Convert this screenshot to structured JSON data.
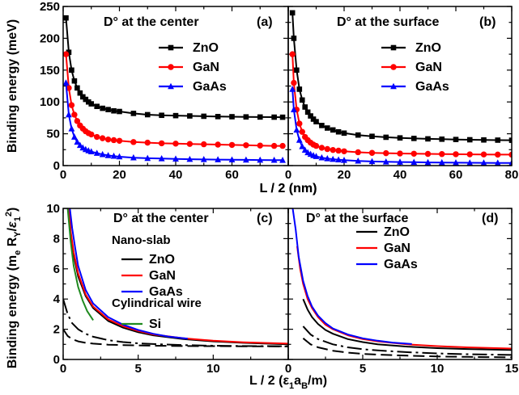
{
  "chart_data": [
    {
      "type": "line",
      "panel": "(a)",
      "title": "D° at the center",
      "ylabel": "Binding energy (meV)",
      "xlabel": "L / 2 (nm)",
      "xlim": [
        0,
        80
      ],
      "ylim": [
        0,
        250
      ],
      "xticks": [
        "0",
        "20",
        "40",
        "60"
      ],
      "yticks": [
        "0",
        "50",
        "100",
        "150",
        "200",
        "250"
      ],
      "legend_position": "top-right",
      "series": [
        {
          "name": "ZnO",
          "color": "#000000",
          "marker": "square",
          "x": [
            1,
            2,
            3,
            4,
            5,
            6,
            7,
            8,
            9,
            10,
            12,
            14,
            16,
            18,
            20,
            25,
            30,
            35,
            40,
            45,
            50,
            55,
            60,
            65,
            70,
            75,
            78
          ],
          "y": [
            232,
            178,
            150,
            133,
            122,
            114,
            108,
            104,
            100,
            97,
            93,
            90,
            88,
            86,
            85,
            82,
            80,
            79,
            78.5,
            78,
            77.5,
            77,
            76.8,
            76.5,
            76.3,
            76.1,
            76
          ]
        },
        {
          "name": "GaN",
          "color": "#ff0000",
          "marker": "circle",
          "x": [
            1,
            2,
            3,
            4,
            5,
            6,
            7,
            8,
            9,
            10,
            12,
            14,
            16,
            18,
            20,
            25,
            30,
            35,
            40,
            45,
            50,
            55,
            60,
            65,
            70,
            75,
            78
          ],
          "y": [
            175,
            122,
            95,
            80,
            70,
            63,
            58,
            54,
            51,
            49,
            45,
            43,
            41,
            40,
            39,
            37,
            36,
            35,
            34.5,
            34,
            33.5,
            33,
            32.5,
            32,
            31.5,
            31,
            31
          ]
        },
        {
          "name": "GaAs",
          "color": "#0000ff",
          "marker": "triangle",
          "x": [
            1,
            2,
            3,
            4,
            5,
            6,
            7,
            8,
            9,
            10,
            12,
            14,
            16,
            18,
            20,
            25,
            30,
            35,
            40,
            45,
            50,
            55,
            60,
            65,
            70,
            75,
            78
          ],
          "y": [
            130,
            80,
            58,
            45,
            37,
            32,
            28,
            25.5,
            23.5,
            22,
            19.5,
            17.5,
            16,
            15,
            14,
            12.5,
            11.5,
            11,
            10.5,
            10,
            9.7,
            9.4,
            9.2,
            9,
            8.8,
            8.6,
            8.5
          ]
        }
      ]
    },
    {
      "type": "line",
      "panel": "(b)",
      "title": "D° at the surface",
      "xlabel": "L / 2 (nm)",
      "xlim": [
        0,
        80
      ],
      "ylim": [
        0,
        250
      ],
      "xticks": [
        "0",
        "20",
        "40",
        "60",
        "80"
      ],
      "legend_position": "top-right",
      "series": [
        {
          "name": "ZnO",
          "color": "#000000",
          "marker": "square",
          "x": [
            1.5,
            2,
            3,
            4,
            5,
            6,
            7,
            8,
            9,
            10,
            12,
            14,
            16,
            18,
            20,
            25,
            30,
            35,
            40,
            45,
            50,
            55,
            60,
            65,
            70,
            75,
            80
          ],
          "y": [
            240,
            200,
            150,
            120,
            103,
            92,
            84,
            78,
            73,
            69,
            63,
            59,
            56,
            53,
            51,
            48,
            46,
            44.5,
            43.5,
            42.7,
            42,
            41.5,
            41,
            40.6,
            40.3,
            40,
            39.8
          ]
        },
        {
          "name": "GaN",
          "color": "#ff0000",
          "marker": "circle",
          "x": [
            1.5,
            2,
            3,
            4,
            5,
            6,
            7,
            8,
            9,
            10,
            12,
            14,
            16,
            18,
            20,
            25,
            30,
            35,
            40,
            45,
            50,
            55,
            60,
            65,
            70,
            75,
            80
          ],
          "y": [
            175,
            130,
            88,
            66,
            53,
            45,
            40,
            36,
            33,
            31,
            28,
            26,
            24.5,
            23.5,
            22.5,
            21,
            20,
            19.5,
            19,
            18.7,
            18.4,
            18.1,
            17.9,
            17.7,
            17.5,
            17.3,
            17.2
          ]
        },
        {
          "name": "GaAs",
          "color": "#0000ff",
          "marker": "triangle",
          "x": [
            1.5,
            2,
            3,
            4,
            5,
            6,
            7,
            8,
            9,
            10,
            12,
            14,
            16,
            18,
            20,
            25,
            30,
            35,
            40,
            45,
            50,
            55,
            60,
            65,
            70,
            75,
            80
          ],
          "y": [
            120,
            88,
            56,
            40,
            30,
            24.5,
            20.5,
            18,
            16,
            14.5,
            12.5,
            11,
            10,
            9.2,
            8.5,
            7.3,
            6.5,
            6,
            5.6,
            5.3,
            5,
            4.8,
            4.6,
            4.4,
            4.3,
            4.2,
            4.1
          ]
        }
      ]
    },
    {
      "type": "line",
      "panel": "(c)",
      "title": "D° at the center",
      "ylabel_parts": {
        "lead": "Binding energy (m",
        "sub1": "e",
        "mid": " R",
        "sub2": "Y",
        "tail": "/",
        "eps": "ε",
        "sub3": "1",
        "sup": "2",
        "close": ")"
      },
      "xlabel_parts": {
        "lead": "L / 2 (",
        "eps": "ε",
        "sub1": "1",
        "a": "a",
        "sub2": "B",
        "tail": "/m)"
      },
      "xlim": [
        0,
        15
      ],
      "ylim": [
        0,
        10
      ],
      "xticks": [
        "0",
        "5",
        "10"
      ],
      "yticks": [
        "0",
        "2",
        "4",
        "6",
        "8",
        "10"
      ],
      "legend_header": "Nano-slab",
      "legend_header2": "Cylindrical wire",
      "legend_position": "top-right",
      "series": [
        {
          "name": "ZnO",
          "color": "#000000",
          "x": [
            0.35,
            0.5,
            0.7,
            1,
            1.5,
            2,
            3,
            4,
            5,
            6,
            8,
            10,
            12,
            15
          ],
          "y": [
            10,
            8.2,
            6.9,
            5.5,
            4.2,
            3.4,
            2.55,
            2.1,
            1.8,
            1.6,
            1.35,
            1.2,
            1.1,
            1.0
          ]
        },
        {
          "name": "GaN",
          "color": "#ff0000",
          "x": [
            0.4,
            0.5,
            0.7,
            1,
            1.5,
            2,
            3,
            4,
            5,
            6,
            8,
            10,
            12,
            15
          ],
          "y": [
            10,
            8.5,
            7.1,
            5.7,
            4.3,
            3.5,
            2.65,
            2.2,
            1.88,
            1.66,
            1.4,
            1.24,
            1.14,
            1.05
          ]
        },
        {
          "name": "GaAs",
          "color": "#0000ff",
          "x": [
            0.45,
            0.6,
            0.8,
            1,
            1.5,
            2,
            3,
            4,
            5,
            6,
            7,
            8.3
          ],
          "y": [
            10,
            8.7,
            7.4,
            6.2,
            4.6,
            3.7,
            2.8,
            2.3,
            1.95,
            1.7,
            1.52,
            1.38
          ]
        },
        {
          "name": "Si",
          "color": "#1f8a1f",
          "x": [
            0.3,
            0.5,
            0.7,
            1,
            1.3,
            1.6,
            2.0
          ],
          "y": [
            10,
            7.8,
            6.2,
            4.8,
            3.9,
            3.2,
            2.6
          ]
        },
        {
          "color": "#000000",
          "dash": "dashdot",
          "x": [
            0,
            0.3,
            0.6,
            1,
            1.5,
            2,
            3,
            4,
            5,
            6,
            8,
            10,
            12,
            15
          ],
          "y": [
            4.0,
            3.0,
            2.4,
            2.0,
            1.7,
            1.5,
            1.28,
            1.15,
            1.07,
            1.02,
            0.95,
            0.91,
            0.89,
            0.87
          ]
        },
        {
          "color": "#000000",
          "dash": "dash",
          "x": [
            0,
            0.3,
            0.6,
            1,
            1.5,
            2,
            3,
            4,
            5,
            6,
            8,
            10,
            12,
            15
          ],
          "y": [
            2.0,
            1.55,
            1.35,
            1.2,
            1.1,
            1.05,
            0.98,
            0.95,
            0.93,
            0.91,
            0.89,
            0.88,
            0.87,
            0.86
          ]
        }
      ]
    },
    {
      "type": "line",
      "panel": "(d)",
      "title": "D° at the surface",
      "xlim": [
        0,
        15
      ],
      "ylim": [
        0,
        10
      ],
      "xticks": [
        "0",
        "5",
        "10",
        "15"
      ],
      "legend_position": "top-right",
      "series": [
        {
          "name": "ZnO",
          "color": "#000000",
          "x": [
            1,
            1.3,
            1.6,
            2,
            2.5,
            3,
            4,
            5,
            6,
            8,
            10,
            12,
            15
          ],
          "y": [
            4.0,
            3.3,
            2.8,
            2.35,
            1.95,
            1.7,
            1.35,
            1.15,
            1.0,
            0.85,
            0.75,
            0.69,
            0.63
          ]
        },
        {
          "name": "GaN",
          "color": "#ff0000",
          "x": [
            0.6,
            0.8,
            1,
            1.3,
            1.6,
            2,
            2.5,
            3,
            4,
            5,
            6,
            8,
            10,
            12,
            15
          ],
          "y": [
            7.5,
            6.0,
            5.0,
            4.0,
            3.4,
            2.8,
            2.3,
            2.0,
            1.6,
            1.35,
            1.2,
            1.0,
            0.88,
            0.8,
            0.72
          ]
        },
        {
          "name": "GaAs",
          "color": "#0000ff",
          "x": [
            0.3,
            0.5,
            0.7,
            1,
            1.3,
            1.6,
            2,
            2.5,
            3,
            4,
            5,
            6,
            7,
            8.3
          ],
          "y": [
            10,
            8.6,
            6.8,
            5.2,
            4.2,
            3.5,
            2.9,
            2.4,
            2.05,
            1.65,
            1.4,
            1.24,
            1.12,
            1.02
          ]
        },
        {
          "color": "#000000",
          "dash": "dashdot",
          "x": [
            1,
            1.5,
            2,
            3,
            4,
            5,
            6,
            8,
            10,
            12,
            15
          ],
          "y": [
            2.2,
            1.65,
            1.35,
            1.0,
            0.8,
            0.68,
            0.6,
            0.48,
            0.4,
            0.35,
            0.3
          ]
        },
        {
          "color": "#000000",
          "dash": "dash",
          "x": [
            1,
            1.5,
            2,
            3,
            4,
            5,
            6,
            8,
            10,
            12,
            15
          ],
          "y": [
            1.4,
            1.0,
            0.8,
            0.58,
            0.45,
            0.37,
            0.32,
            0.25,
            0.2,
            0.17,
            0.14
          ]
        }
      ]
    }
  ]
}
